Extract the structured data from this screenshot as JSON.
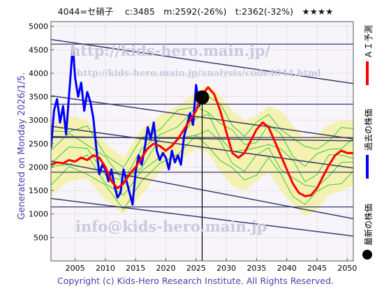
{
  "header": {
    "title": "4044=セ硝子　 c:3485　m:2592(-26%)　t:2362(-32%)　★★★★"
  },
  "side_label": "Generated on Monday 2026/1/5.",
  "footer": "Copyright (c) Kids-Hero Research Institute. All Rights Reserved.",
  "watermarks": {
    "url": "http://kids-hero.main.jp/",
    "analysis": "http://kids-hero.main.jp/analysis/code4044.html",
    "email": "info@kids-hero.main.jp"
  },
  "legend": [
    {
      "label": "ＡＩ予測",
      "color": "#ff0000",
      "kind": "line"
    },
    {
      "label": "過去の株価",
      "color": "#0000ff",
      "kind": "line"
    },
    {
      "label": "最新の株価",
      "color": "#000000",
      "kind": "dot"
    }
  ],
  "chart_data": {
    "type": "line",
    "x_range": [
      2001,
      2051
    ],
    "y_range": [
      0,
      5100
    ],
    "x_ticks": [
      2005,
      2010,
      2015,
      2020,
      2025,
      2030,
      2035,
      2040,
      2045,
      2050
    ],
    "y_ticks": [
      500,
      1000,
      1500,
      2000,
      2500,
      3000,
      3500,
      4000,
      4500,
      5000
    ],
    "latest": {
      "x": 2026.0,
      "y": 3485
    },
    "horizontal_lines": [
      4620,
      3340,
      2630,
      1890,
      1150
    ],
    "trend_lines": [
      {
        "x": [
          2001,
          2051
        ],
        "y": [
          4720,
          3780
        ]
      },
      {
        "x": [
          2001,
          2051
        ],
        "y": [
          3520,
          2600
        ]
      },
      {
        "x": [
          2001,
          2051
        ],
        "y": [
          2870,
          1980
        ]
      },
      {
        "x": [
          2001,
          2051
        ],
        "y": [
          2650,
          2560
        ]
      },
      {
        "x": [
          2001,
          2051
        ],
        "y": [
          2130,
          900
        ]
      },
      {
        "x": [
          2001,
          2051
        ],
        "y": [
          1330,
          530
        ]
      }
    ],
    "series": [
      {
        "name": "過去の株価",
        "color": "#0000ff",
        "x": [
          2001,
          2001.5,
          2002,
          2002.5,
          2003,
          2003.5,
          2004,
          2004.3,
          2004.6,
          2005,
          2005.5,
          2006,
          2006.5,
          2007,
          2007.5,
          2008,
          2008.5,
          2009,
          2009.5,
          2010,
          2010.5,
          2011,
          2011.5,
          2012,
          2012.5,
          2013,
          2013.5,
          2014,
          2014.5,
          2015,
          2015.5,
          2016,
          2016.5,
          2017,
          2017.5,
          2018,
          2018.5,
          2019,
          2019.5,
          2020,
          2020.5,
          2021,
          2021.5,
          2022,
          2022.5,
          2023,
          2023.5,
          2024,
          2024.5,
          2025,
          2025.5,
          2026
        ],
        "y": [
          2400,
          3200,
          3450,
          2950,
          3300,
          2700,
          3550,
          4050,
          4600,
          3900,
          3500,
          3800,
          3200,
          3600,
          3400,
          3050,
          2400,
          1850,
          2050,
          1950,
          1700,
          1950,
          1600,
          1350,
          1450,
          1950,
          1700,
          1450,
          1200,
          1900,
          2250,
          2050,
          2400,
          2850,
          2600,
          2950,
          2350,
          2150,
          2300,
          2200,
          1950,
          2350,
          2100,
          2250,
          2050,
          2650,
          2900,
          3150,
          2900,
          3750,
          3300,
          3485
        ]
      },
      {
        "name": "ＡＩ予測",
        "color": "#ff0000",
        "x": [
          2001,
          2002,
          2003,
          2004,
          2005,
          2006,
          2007,
          2008,
          2009,
          2010,
          2011,
          2012,
          2013,
          2014,
          2015,
          2016,
          2017,
          2018,
          2019,
          2020,
          2021,
          2022,
          2023,
          2024,
          2025,
          2026,
          2027,
          2028,
          2029,
          2030,
          2031,
          2032,
          2033,
          2034,
          2035,
          2036,
          2037,
          2038,
          2039,
          2040,
          2041,
          2042,
          2043,
          2044,
          2045,
          2046,
          2047,
          2048,
          2049,
          2050,
          2051
        ],
        "y": [
          2050,
          2100,
          2080,
          2150,
          2120,
          2200,
          2150,
          2250,
          2200,
          2000,
          1700,
          1550,
          1650,
          1850,
          2000,
          2200,
          2400,
          2500,
          2450,
          2350,
          2450,
          2600,
          2800,
          3000,
          3200,
          3550,
          3700,
          3550,
          3200,
          2750,
          2300,
          2200,
          2300,
          2550,
          2800,
          2950,
          2850,
          2550,
          2250,
          1950,
          1650,
          1450,
          1380,
          1400,
          1550,
          1800,
          2050,
          2250,
          2350,
          2300,
          2300
        ]
      }
    ],
    "band": {
      "x": [
        2001,
        2004,
        2007,
        2010,
        2013,
        2016,
        2019,
        2022,
        2025,
        2027,
        2029,
        2031,
        2033,
        2035,
        2037,
        2039,
        2041,
        2043,
        2045,
        2047,
        2049,
        2051
      ],
      "upper": [
        2900,
        3100,
        3000,
        2500,
        2200,
        2800,
        3100,
        3300,
        3600,
        3750,
        3500,
        3200,
        3000,
        3100,
        3300,
        3200,
        2900,
        2600,
        2700,
        2900,
        3000,
        3000
      ],
      "lower": [
        1400,
        1700,
        1750,
        1300,
        1000,
        1400,
        1900,
        2100,
        2400,
        2300,
        1900,
        1600,
        1500,
        1700,
        1900,
        1500,
        1200,
        950,
        1100,
        1400,
        1500,
        1600
      ]
    }
  }
}
